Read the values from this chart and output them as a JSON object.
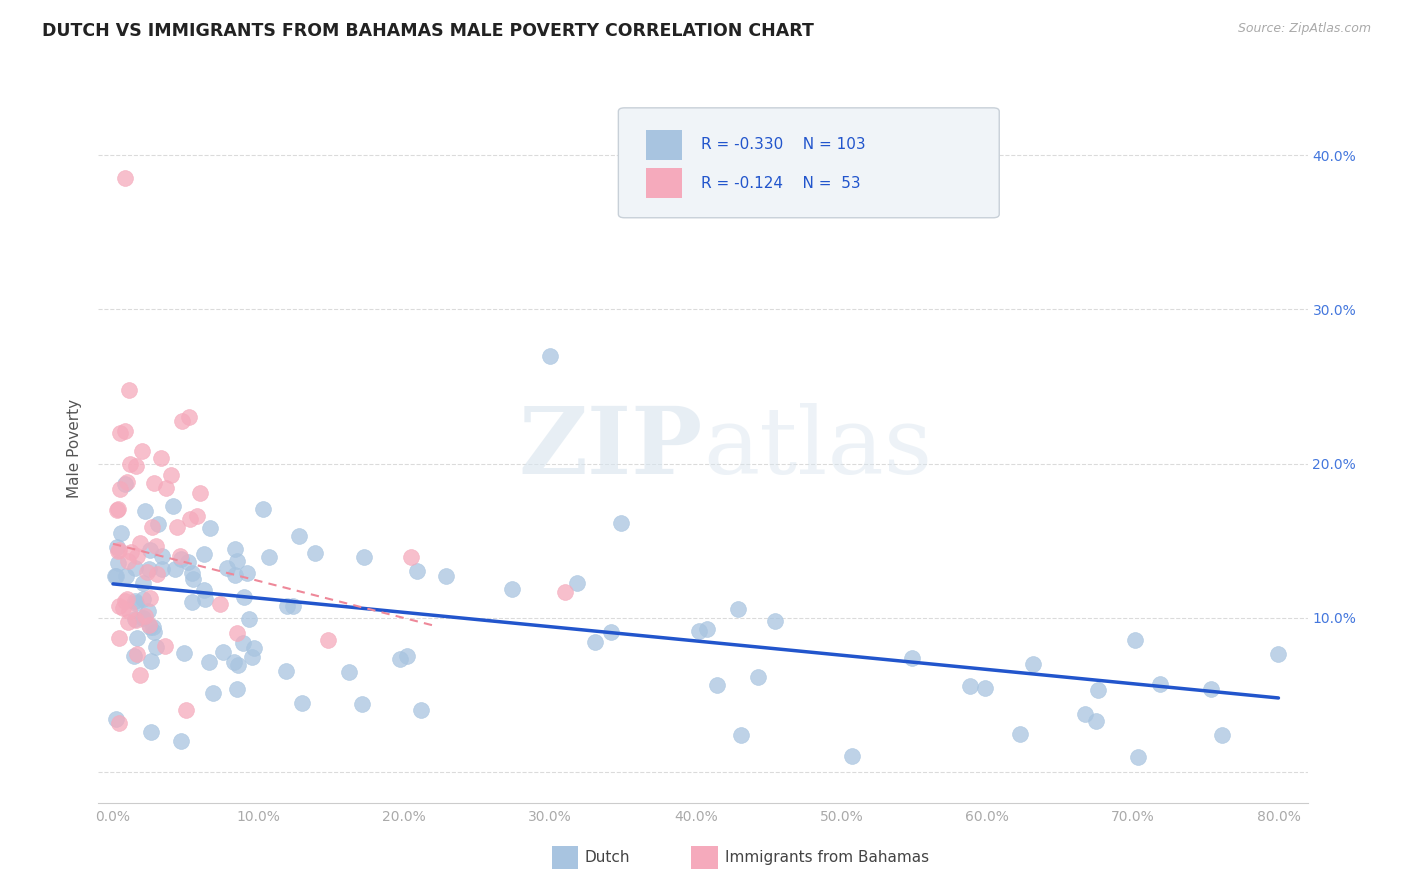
{
  "title": "DUTCH VS IMMIGRANTS FROM BAHAMAS MALE POVERTY CORRELATION CHART",
  "source": "Source: ZipAtlas.com",
  "ylabel": "Male Poverty",
  "xlim": [
    -0.01,
    0.82
  ],
  "ylim": [
    -0.02,
    0.44
  ],
  "xticks": [
    0.0,
    0.1,
    0.2,
    0.3,
    0.4,
    0.5,
    0.6,
    0.7,
    0.8
  ],
  "xticklabels": [
    "0.0%",
    "10.0%",
    "20.0%",
    "30.0%",
    "40.0%",
    "50.0%",
    "60.0%",
    "70.0%",
    "80.0%"
  ],
  "yticks": [
    0.0,
    0.1,
    0.2,
    0.3,
    0.4
  ],
  "right_yticklabels": [
    "",
    "10.0%",
    "20.0%",
    "30.0%",
    "40.0%"
  ],
  "dutch_color": "#A8C4E0",
  "bahamas_color": "#F5AABC",
  "dutch_line_color": "#2255CC",
  "bahamas_line_color": "#EE8899",
  "legend_dutch_R": "-0.330",
  "legend_dutch_N": "103",
  "legend_bahamas_R": "-0.124",
  "legend_bahamas_N": "53",
  "watermark_zip": "ZIP",
  "watermark_atlas": "atlas",
  "dutch_trendline_x": [
    0.0,
    0.8
  ],
  "dutch_trendline_y": [
    0.122,
    0.048
  ],
  "bahamas_trendline_x": [
    0.0,
    0.22
  ],
  "bahamas_trendline_y": [
    0.148,
    0.095
  ],
  "background_color": "#FFFFFF",
  "grid_color": "#CCCCCC",
  "title_color": "#222222",
  "axis_label_color": "#555555",
  "tick_label_color": "#AAAAAA",
  "right_tick_color": "#4477DD",
  "legend_box_color": "#F0F4F8",
  "legend_border_color": "#C8D0D8"
}
